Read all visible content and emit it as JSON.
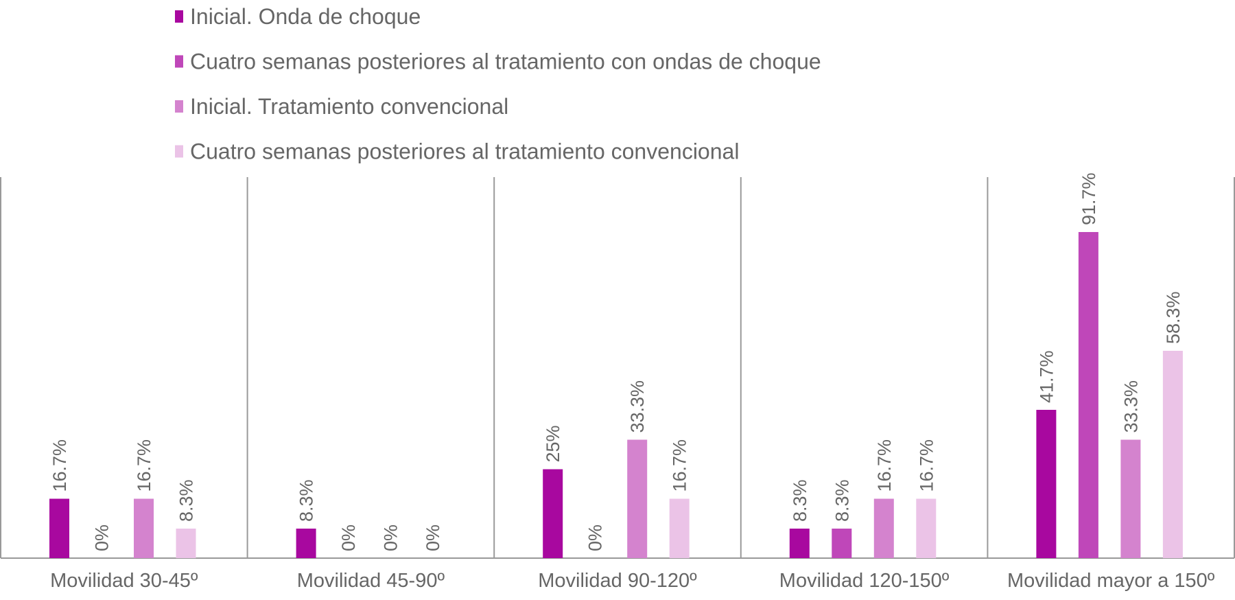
{
  "chart_data": {
    "type": "bar",
    "title": "",
    "xlabel": "",
    "ylabel": "",
    "ylim": [
      0,
      100
    ],
    "grid": false,
    "legend_position": "top",
    "categories": [
      "Movilidad 30-45º",
      "Movilidad 45-90º",
      "Movilidad 90-120º",
      "Movilidad 120-150º",
      "Movilidad mayor a 150º"
    ],
    "series": [
      {
        "name": "Inicial. Onda de choque",
        "color": "#A8089F",
        "values": [
          16.7,
          8.3,
          25,
          8.3,
          41.7
        ],
        "labels": [
          "16.7%",
          "8.3%",
          "25%",
          "8.3%",
          "41.7%"
        ]
      },
      {
        "name": "Cuatro semanas posteriores al tratamiento con ondas de choque",
        "color": "#BF47B9",
        "values": [
          0,
          0,
          0,
          8.3,
          91.7
        ],
        "labels": [
          "0%",
          "0%",
          "0%",
          "8.3%",
          "91.7%"
        ]
      },
      {
        "name": "Inicial. Tratamiento convencional",
        "color": "#D483CE",
        "values": [
          16.7,
          0,
          33.3,
          16.7,
          33.3
        ],
        "labels": [
          "16.7%",
          "0%",
          "33.3%",
          "16.7%",
          "33.3%"
        ]
      },
      {
        "name": "Cuatro semanas posteriores al tratamiento convencional",
        "color": "#EBC3E7",
        "values": [
          8.3,
          0,
          16.7,
          16.7,
          58.3
        ],
        "labels": [
          "8.3%",
          "0%",
          "16.7%",
          "16.7%",
          "58.3%"
        ]
      }
    ]
  }
}
